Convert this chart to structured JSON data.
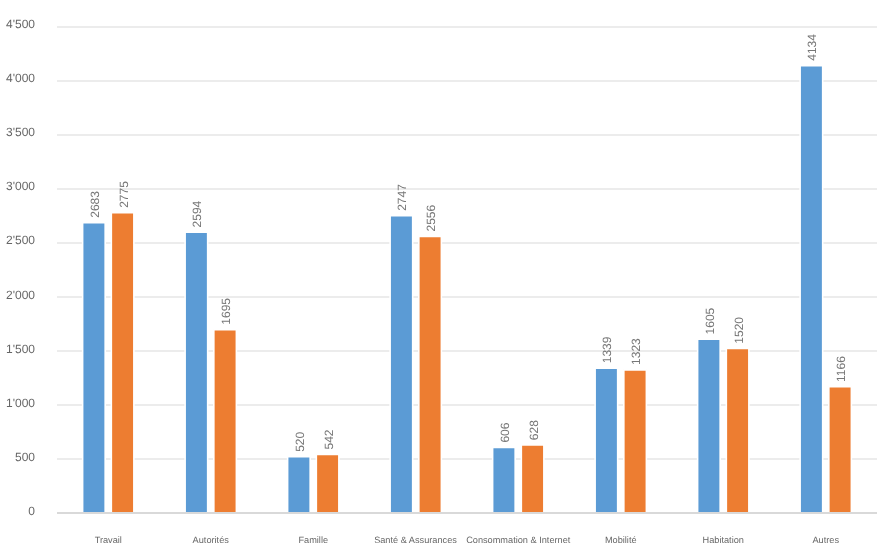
{
  "chart_data": {
    "type": "bar",
    "categories": [
      "Travail",
      "Autorités",
      "Famille",
      "Santé & Assurances",
      "Consommation & Internet",
      "Mobilité",
      "Habitation",
      "Autres"
    ],
    "series": [
      {
        "color": "#5b9bd5",
        "values": [
          2683,
          2594,
          520,
          2747,
          606,
          1339,
          1605,
          4134
        ]
      },
      {
        "color": "#ed7d31",
        "values": [
          2775,
          1695,
          542,
          2556,
          628,
          1323,
          1520,
          1166
        ]
      }
    ],
    "ylim": [
      0,
      4500
    ],
    "yticks": [
      {
        "value": 0,
        "label": "0"
      },
      {
        "value": 500,
        "label": "500"
      },
      {
        "value": 1000,
        "label": "1'000"
      },
      {
        "value": 1500,
        "label": "1'500"
      },
      {
        "value": 2000,
        "label": "2'000"
      },
      {
        "value": 2500,
        "label": "2'500"
      },
      {
        "value": 3000,
        "label": "3'000"
      },
      {
        "value": 3500,
        "label": "3'500"
      },
      {
        "value": 4000,
        "label": "4'000"
      },
      {
        "value": 4500,
        "label": "4'500"
      }
    ],
    "grid": "y",
    "data_labels": true
  }
}
